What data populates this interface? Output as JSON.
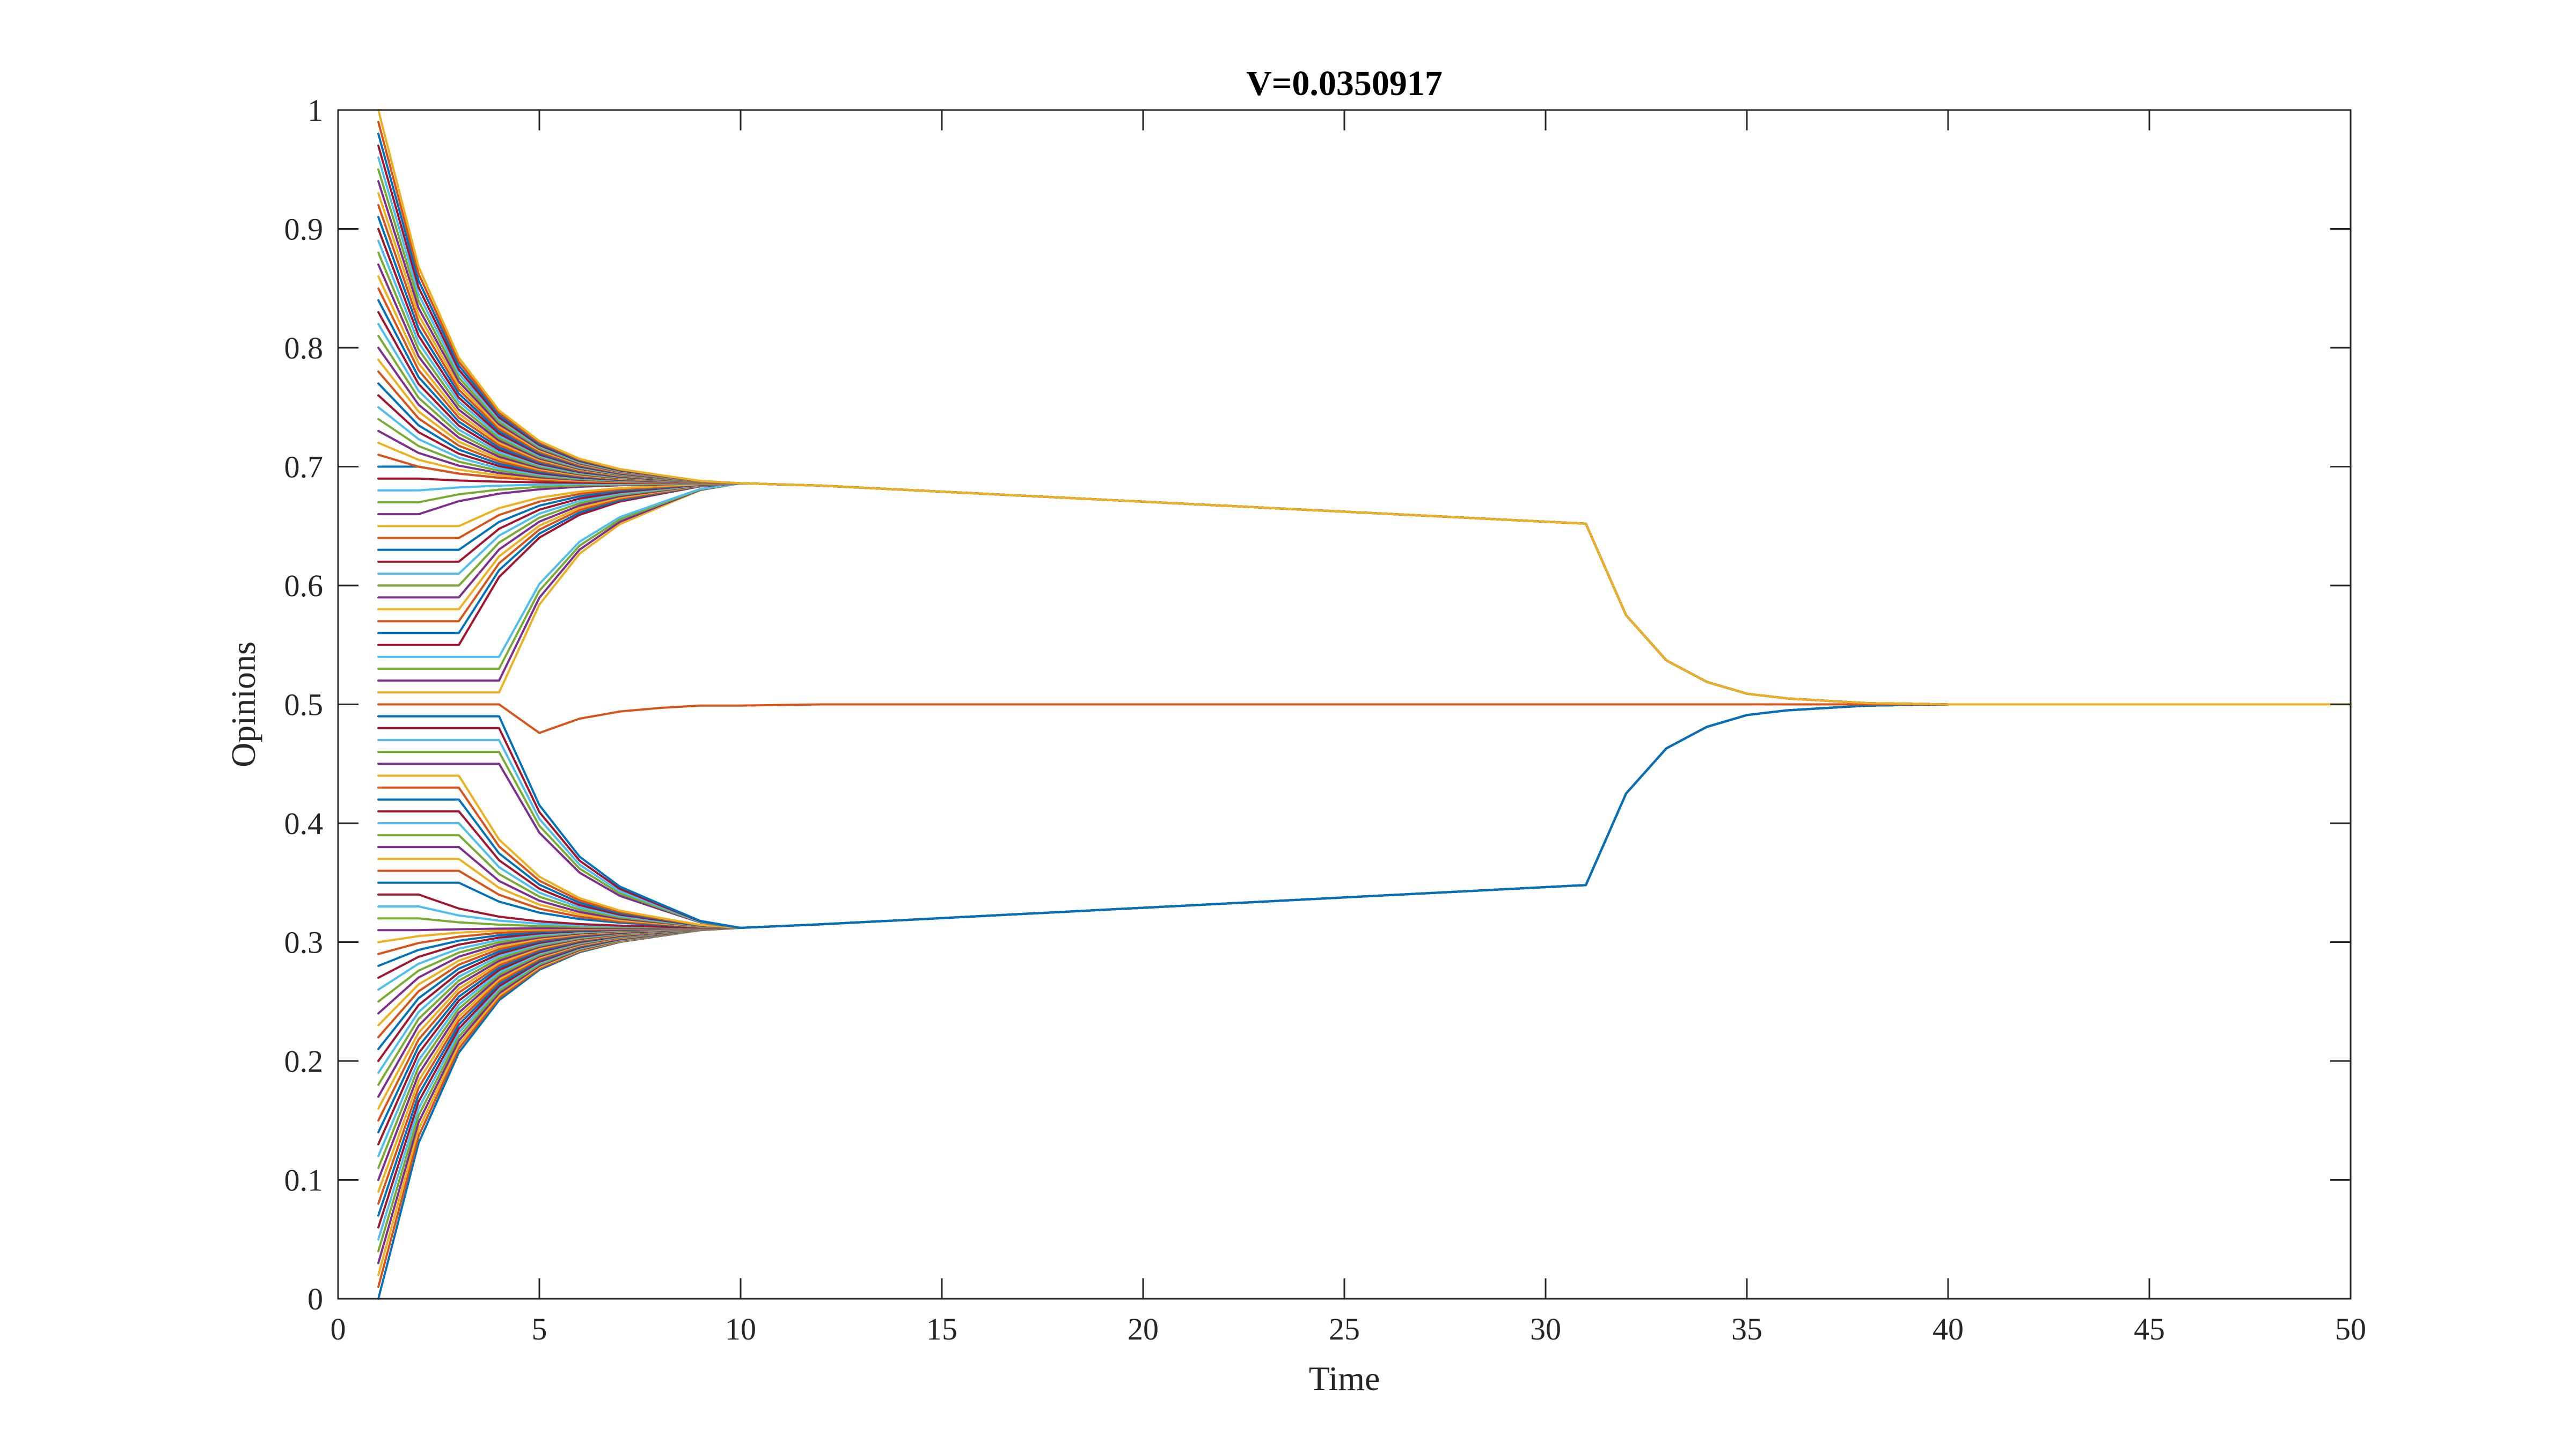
{
  "chart_data": {
    "type": "line",
    "title": "V=0.0350917",
    "xlabel": "Time",
    "ylabel": "Opinions",
    "xlim": [
      0,
      50
    ],
    "ylim": [
      0,
      1
    ],
    "xticks": [
      0,
      5,
      10,
      15,
      20,
      25,
      30,
      35,
      40,
      45,
      50
    ],
    "xtick_labels": [
      "0",
      "5",
      "10",
      "15",
      "20",
      "25",
      "30",
      "35",
      "40",
      "45",
      "50"
    ],
    "yticks": [
      0,
      0.1,
      0.2,
      0.3,
      0.4,
      0.5,
      0.6,
      0.7,
      0.8,
      0.9,
      1
    ],
    "ytick_labels": [
      "0",
      "0.1",
      "0.2",
      "0.3",
      "0.4",
      "0.5",
      "0.6",
      "0.7",
      "0.8",
      "0.9",
      "1"
    ],
    "grid": false,
    "box": true,
    "colors": [
      "#0072BD",
      "#D95319",
      "#EDB120",
      "#7E2F8E",
      "#77AC30",
      "#4DBEEE",
      "#A2142F"
    ],
    "x": [
      1,
      2,
      3,
      4,
      5,
      6,
      7,
      8,
      9,
      10,
      11,
      12,
      13,
      14,
      15,
      16,
      17,
      18,
      19,
      20,
      21,
      22,
      23,
      24,
      25,
      26,
      27,
      28,
      29,
      30,
      31,
      32,
      33,
      34,
      35,
      36,
      37,
      38,
      39,
      40,
      41,
      42,
      43,
      44,
      45,
      46,
      47,
      48,
      49,
      50
    ],
    "series_initial_values": [
      0,
      0.01,
      0.02,
      0.03,
      0.04,
      0.05,
      0.06,
      0.07,
      0.08,
      0.09,
      0.1,
      0.11,
      0.12,
      0.13,
      0.14,
      0.15,
      0.16,
      0.17,
      0.18,
      0.19,
      0.2,
      0.21,
      0.22,
      0.23,
      0.24,
      0.25,
      0.26,
      0.27,
      0.28,
      0.29,
      0.3,
      0.31,
      0.32,
      0.33,
      0.34,
      0.35,
      0.36,
      0.37,
      0.38,
      0.39,
      0.4,
      0.41,
      0.42,
      0.43,
      0.44,
      0.45,
      0.46,
      0.47,
      0.48,
      0.49,
      0.5,
      0.51,
      0.52,
      0.53,
      0.54,
      0.55,
      0.56,
      0.57,
      0.58,
      0.59,
      0.6,
      0.61,
      0.62,
      0.63,
      0.64,
      0.65,
      0.66,
      0.67,
      0.68,
      0.69,
      0.7,
      0.71,
      0.72,
      0.73,
      0.74,
      0.75,
      0.76,
      0.77,
      0.78,
      0.79,
      0.8,
      0.81,
      0.82,
      0.83,
      0.84,
      0.85,
      0.86,
      0.87,
      0.88,
      0.89,
      0.9,
      0.91,
      0.92,
      0.93,
      0.94,
      0.95,
      0.96,
      0.97,
      0.98,
      0.99,
      1
    ],
    "lower_cluster": {
      "t": [
        10,
        12,
        31,
        32,
        33,
        34,
        35,
        36,
        38,
        40,
        50
      ],
      "v": [
        0.312,
        0.315,
        0.348,
        0.425,
        0.463,
        0.481,
        0.491,
        0.495,
        0.499,
        0.5,
        0.5
      ]
    },
    "upper_cluster": {
      "t": [
        10,
        12,
        31,
        32,
        33,
        34,
        35,
        36,
        38,
        40,
        50
      ],
      "v": [
        0.686,
        0.684,
        0.652,
        0.575,
        0.537,
        0.519,
        0.509,
        0.505,
        0.501,
        0.5,
        0.5
      ]
    },
    "middle_agent": {
      "t": [
        1,
        4,
        5,
        6,
        7,
        8,
        9,
        10,
        12,
        50
      ],
      "v": [
        0.5,
        0.5,
        0.476,
        0.488,
        0.494,
        0.497,
        0.499,
        0.499,
        0.5,
        0.5
      ]
    }
  }
}
